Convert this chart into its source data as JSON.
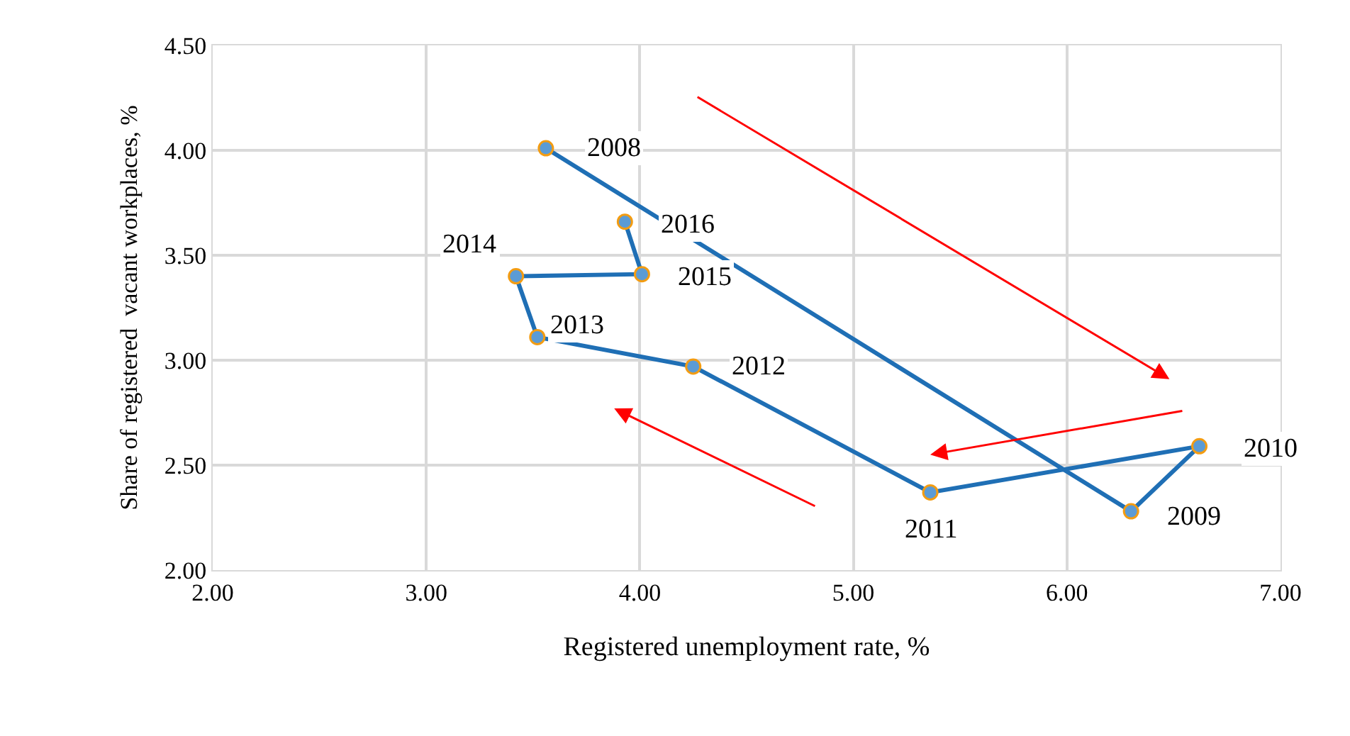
{
  "chart_data": {
    "type": "line",
    "xlabel": "Registered unemployment rate, %",
    "ylabel": "Share of registered  vacant workplaces, %",
    "xlim": [
      2,
      7
    ],
    "xticks": [
      {
        "value": 2,
        "label": "2.00"
      },
      {
        "value": 3,
        "label": "3.00"
      },
      {
        "value": 4,
        "label": "4.00"
      },
      {
        "value": 5,
        "label": "5.00"
      },
      {
        "value": 6,
        "label": "6.00"
      },
      {
        "value": 7,
        "label": "7.00"
      }
    ],
    "ylim": [
      2,
      4.5
    ],
    "yticks": [
      {
        "value": 2,
        "label": "2.00"
      },
      {
        "value": 2.5,
        "label": "2.50"
      },
      {
        "value": 3,
        "label": "3.00"
      },
      {
        "value": 3.5,
        "label": "3.50"
      },
      {
        "value": 4,
        "label": "4.00"
      },
      {
        "value": 4.5,
        "label": "4.50"
      }
    ],
    "grid": true,
    "marker": "circle",
    "line_style": "solid",
    "series": [
      {
        "color": "#1f6fb5",
        "x": [
          3.56,
          6.3,
          6.62,
          5.36,
          4.25,
          3.52,
          3.42,
          4.01,
          3.93
        ],
        "values": [
          4.01,
          2.28,
          2.59,
          2.37,
          2.97,
          3.11,
          3.4,
          3.41,
          3.66
        ]
      }
    ],
    "annotations": [
      {
        "text": "2008",
        "x": 3.56,
        "y": 4.01
      },
      {
        "text": "2009",
        "x": 6.3,
        "y": 2.28
      },
      {
        "text": "2010",
        "x": 6.62,
        "y": 2.59
      },
      {
        "text": "2011",
        "x": 5.36,
        "y": 2.37
      },
      {
        "text": "2012",
        "x": 4.25,
        "y": 2.97
      },
      {
        "text": "2013",
        "x": 3.52,
        "y": 3.11
      },
      {
        "text": "2014",
        "x": 3.42,
        "y": 3.4
      },
      {
        "text": "2015",
        "x": 4.01,
        "y": 3.41
      },
      {
        "text": "2016",
        "x": 3.93,
        "y": 3.66
      }
    ]
  }
}
